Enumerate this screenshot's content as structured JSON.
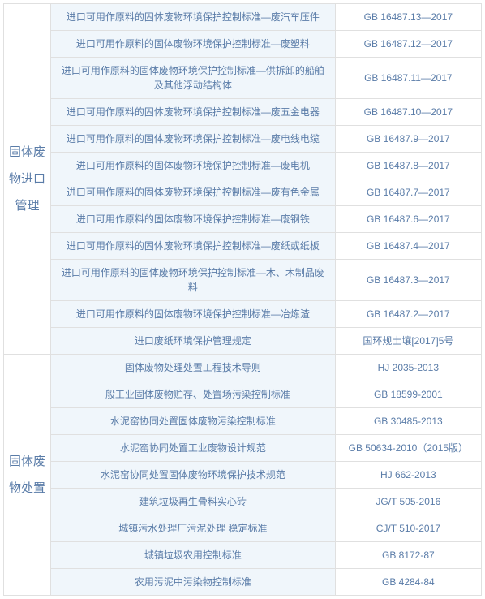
{
  "colors": {
    "border": "#e0e0e0",
    "text": "#5a7ca8",
    "descBg": "#f0f6fb",
    "codeBg": "#ffffff",
    "pageBg": "#ffffff"
  },
  "fonts": {
    "base": 12,
    "category": 15
  },
  "categories": [
    {
      "label": "固体废物进口管理",
      "rows": [
        {
          "desc": "进口可用作原料的固体废物环境保护控制标准—废汽车压件",
          "code": "GB 16487.13—2017"
        },
        {
          "desc": "进口可用作原料的固体废物环境保护控制标准—废塑料",
          "code": "GB 16487.12—2017"
        },
        {
          "desc": "进口可用作原料的固体废物环境保护控制标准—供拆卸的船舶及其他浮动结构体",
          "code": "GB 16487.11—2017"
        },
        {
          "desc": "进口可用作原料的固体废物环境保护控制标准—废五金电器",
          "code": "GB 16487.10—2017"
        },
        {
          "desc": "进口可用作原料的固体废物环境保护控制标准—废电线电缆",
          "code": "GB 16487.9—2017"
        },
        {
          "desc": "进口可用作原料的固体废物环境保护控制标准—废电机",
          "code": "GB 16487.8—2017"
        },
        {
          "desc": "进口可用作原料的固体废物环境保护控制标准—废有色金属",
          "code": "GB 16487.7—2017"
        },
        {
          "desc": "进口可用作原料的固体废物环境保护控制标准—废钢铁",
          "code": "GB 16487.6—2017"
        },
        {
          "desc": "进口可用作原料的固体废物环境保护控制标准—废纸或纸板",
          "code": "GB 16487.4—2017"
        },
        {
          "desc": "进口可用作原料的固体废物环境保护控制标准—木、木制品废料",
          "code": "GB 16487.3—2017"
        },
        {
          "desc": "进口可用作原料的固体废物环境保护控制标准—冶炼渣",
          "code": "GB 16487.2—2017"
        },
        {
          "desc": "进口废纸环境保护管理规定",
          "code": "国环规土壤[2017]5号"
        }
      ]
    },
    {
      "label": "固体废物处置",
      "rows": [
        {
          "desc": "固体废物处理处置工程技术导则",
          "code": "HJ 2035-2013"
        },
        {
          "desc": "一般工业固体废物贮存、处置场污染控制标准",
          "code": "GB 18599-2001"
        },
        {
          "desc": "水泥窑协同处置固体废物污染控制标准",
          "code": "GB 30485-2013"
        },
        {
          "desc": "水泥窑协同处置工业废物设计规范",
          "code": "GB  50634-2010（2015版）"
        },
        {
          "desc": "水泥窑协同处置固体废物环境保护技术规范",
          "code": "HJ 662-2013"
        },
        {
          "desc": "建筑垃圾再生骨料实心砖",
          "code": "JG/T 505-2016"
        },
        {
          "desc": "城镇污水处理厂污泥处理  稳定标准",
          "code": "CJ/T 510-2017"
        },
        {
          "desc": "城镇垃圾农用控制标准",
          "code": "GB 8172-87"
        },
        {
          "desc": "农用污泥中污染物控制标准",
          "code": "GB 4284-84"
        }
      ]
    }
  ]
}
